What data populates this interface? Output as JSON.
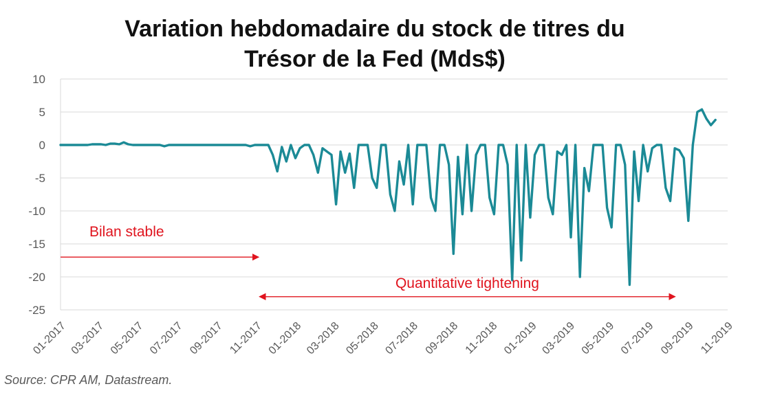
{
  "title_line1": "Variation hebdomadaire du stock de titres du",
  "title_line2": "Trésor de la Fed (Mds$)",
  "source": "Source: CPR AM, Datastream.",
  "colors": {
    "series": "#1b8a96",
    "annotation": "#e0141e",
    "grid": "#d9d9d9"
  },
  "chart_data": {
    "type": "line",
    "title": "Variation hebdomadaire du stock de titres du Trésor de la Fed (Mds$)",
    "xlabel": "",
    "ylabel": "",
    "x_ticks": [
      "01-2017",
      "03-2017",
      "05-2017",
      "07-2017",
      "09-2017",
      "11-2017",
      "01-2018",
      "03-2018",
      "05-2018",
      "07-2018",
      "09-2018",
      "11-2018",
      "01-2019",
      "03-2019",
      "05-2019",
      "07-2019",
      "09-2019",
      "11-2019"
    ],
    "y_ticks": [
      10,
      5,
      0,
      -5,
      -10,
      -15,
      -20,
      -25
    ],
    "xlim": [
      "2017-01",
      "2019-11"
    ],
    "ylim": [
      -25,
      10
    ],
    "grid": "horizontal",
    "series": [
      {
        "values": [
          [
            "2017-01-01",
            0
          ],
          [
            "2017-01-08",
            0
          ],
          [
            "2017-01-15",
            0
          ],
          [
            "2017-01-22",
            0
          ],
          [
            "2017-01-29",
            0
          ],
          [
            "2017-02-05",
            0
          ],
          [
            "2017-02-12",
            0
          ],
          [
            "2017-02-19",
            0.1
          ],
          [
            "2017-02-26",
            0.1
          ],
          [
            "2017-03-05",
            0.1
          ],
          [
            "2017-03-12",
            0
          ],
          [
            "2017-03-19",
            0.2
          ],
          [
            "2017-03-26",
            0.2
          ],
          [
            "2017-04-02",
            0.1
          ],
          [
            "2017-04-09",
            0.4
          ],
          [
            "2017-04-16",
            0.1
          ],
          [
            "2017-04-23",
            0
          ],
          [
            "2017-04-30",
            0
          ],
          [
            "2017-05-07",
            0
          ],
          [
            "2017-05-14",
            0
          ],
          [
            "2017-05-21",
            0
          ],
          [
            "2017-05-28",
            0
          ],
          [
            "2017-06-04",
            0
          ],
          [
            "2017-06-11",
            -0.2
          ],
          [
            "2017-06-18",
            0
          ],
          [
            "2017-06-25",
            0
          ],
          [
            "2017-07-02",
            0
          ],
          [
            "2017-07-09",
            0
          ],
          [
            "2017-07-16",
            0
          ],
          [
            "2017-07-23",
            0
          ],
          [
            "2017-07-30",
            0
          ],
          [
            "2017-08-06",
            0
          ],
          [
            "2017-08-13",
            0
          ],
          [
            "2017-08-20",
            0
          ],
          [
            "2017-08-27",
            0
          ],
          [
            "2017-09-03",
            0
          ],
          [
            "2017-09-10",
            0
          ],
          [
            "2017-09-17",
            0
          ],
          [
            "2017-09-24",
            0
          ],
          [
            "2017-10-01",
            0
          ],
          [
            "2017-10-08",
            0
          ],
          [
            "2017-10-15",
            0
          ],
          [
            "2017-10-22",
            -0.2
          ],
          [
            "2017-10-29",
            0
          ],
          [
            "2017-11-05",
            0
          ],
          [
            "2017-11-12",
            0
          ],
          [
            "2017-11-19",
            0
          ],
          [
            "2017-11-26",
            -1.5
          ],
          [
            "2017-12-03",
            -4
          ],
          [
            "2017-12-10",
            -0.3
          ],
          [
            "2017-12-17",
            -2.5
          ],
          [
            "2017-12-24",
            0
          ],
          [
            "2017-12-31",
            -2
          ],
          [
            "2018-01-07",
            -0.5
          ],
          [
            "2018-01-14",
            0
          ],
          [
            "2018-01-21",
            0
          ],
          [
            "2018-01-28",
            -1.5
          ],
          [
            "2018-02-04",
            -4.2
          ],
          [
            "2018-02-11",
            -0.5
          ],
          [
            "2018-02-18",
            -1
          ],
          [
            "2018-02-25",
            -1.5
          ],
          [
            "2018-03-04",
            -9
          ],
          [
            "2018-03-11",
            -1
          ],
          [
            "2018-03-18",
            -4.2
          ],
          [
            "2018-03-25",
            -1.3
          ],
          [
            "2018-04-01",
            -6.5
          ],
          [
            "2018-04-08",
            0
          ],
          [
            "2018-04-15",
            0
          ],
          [
            "2018-04-22",
            0
          ],
          [
            "2018-04-29",
            -5
          ],
          [
            "2018-05-06",
            -6.5
          ],
          [
            "2018-05-13",
            0
          ],
          [
            "2018-05-20",
            0
          ],
          [
            "2018-05-27",
            -7.5
          ],
          [
            "2018-06-03",
            -10
          ],
          [
            "2018-06-10",
            -2.5
          ],
          [
            "2018-06-17",
            -6
          ],
          [
            "2018-06-24",
            0
          ],
          [
            "2018-07-01",
            -9
          ],
          [
            "2018-07-08",
            0
          ],
          [
            "2018-07-15",
            0
          ],
          [
            "2018-07-22",
            0
          ],
          [
            "2018-07-29",
            -8
          ],
          [
            "2018-08-05",
            -10
          ],
          [
            "2018-08-12",
            0
          ],
          [
            "2018-08-19",
            0
          ],
          [
            "2018-08-26",
            -3
          ],
          [
            "2018-09-02",
            -16.5
          ],
          [
            "2018-09-09",
            -1.8
          ],
          [
            "2018-09-16",
            -10.5
          ],
          [
            "2018-09-23",
            0
          ],
          [
            "2018-09-30",
            -10
          ],
          [
            "2018-10-07",
            -1.5
          ],
          [
            "2018-10-14",
            0
          ],
          [
            "2018-10-21",
            0
          ],
          [
            "2018-10-28",
            -8
          ],
          [
            "2018-11-04",
            -10.5
          ],
          [
            "2018-11-11",
            0
          ],
          [
            "2018-11-18",
            0
          ],
          [
            "2018-11-25",
            -3
          ],
          [
            "2018-12-02",
            -20.5
          ],
          [
            "2018-12-09",
            0
          ],
          [
            "2018-12-16",
            -17.5
          ],
          [
            "2018-12-23",
            0
          ],
          [
            "2018-12-30",
            -11
          ],
          [
            "2019-01-06",
            -1.5
          ],
          [
            "2019-01-13",
            0
          ],
          [
            "2019-01-20",
            0
          ],
          [
            "2019-01-27",
            -8
          ],
          [
            "2019-02-03",
            -10.5
          ],
          [
            "2019-02-10",
            -1
          ],
          [
            "2019-02-17",
            -1.5
          ],
          [
            "2019-02-24",
            0
          ],
          [
            "2019-03-03",
            -14
          ],
          [
            "2019-03-10",
            0
          ],
          [
            "2019-03-17",
            -20
          ],
          [
            "2019-03-24",
            -3.5
          ],
          [
            "2019-03-31",
            -7
          ],
          [
            "2019-04-07",
            0
          ],
          [
            "2019-04-14",
            0
          ],
          [
            "2019-04-21",
            0
          ],
          [
            "2019-04-28",
            -9.5
          ],
          [
            "2019-05-05",
            -12.5
          ],
          [
            "2019-05-12",
            0
          ],
          [
            "2019-05-19",
            0
          ],
          [
            "2019-05-26",
            -3
          ],
          [
            "2019-06-02",
            -21.2
          ],
          [
            "2019-06-09",
            -1
          ],
          [
            "2019-06-16",
            -8.5
          ],
          [
            "2019-06-23",
            0
          ],
          [
            "2019-06-30",
            -4
          ],
          [
            "2019-07-07",
            -0.5
          ],
          [
            "2019-07-14",
            0
          ],
          [
            "2019-07-21",
            0
          ],
          [
            "2019-07-28",
            -6.5
          ],
          [
            "2019-08-04",
            -8.5
          ],
          [
            "2019-08-11",
            -0.5
          ],
          [
            "2019-08-18",
            -0.8
          ],
          [
            "2019-08-25",
            -2
          ],
          [
            "2019-09-01",
            -11.5
          ],
          [
            "2019-09-08",
            0
          ],
          [
            "2019-09-15",
            5
          ],
          [
            "2019-09-22",
            5.4
          ],
          [
            "2019-09-29",
            4
          ],
          [
            "2019-10-06",
            3
          ],
          [
            "2019-10-13",
            3.8
          ]
        ]
      }
    ],
    "annotations": [
      {
        "text": "Bilan stable",
        "arrow": "right",
        "from": "2017-01",
        "to": "2017-11",
        "y": -17
      },
      {
        "text": "Quantitative tightening",
        "arrow": "both",
        "from": "2017-11",
        "to": "2019-08",
        "y": -23
      }
    ]
  }
}
